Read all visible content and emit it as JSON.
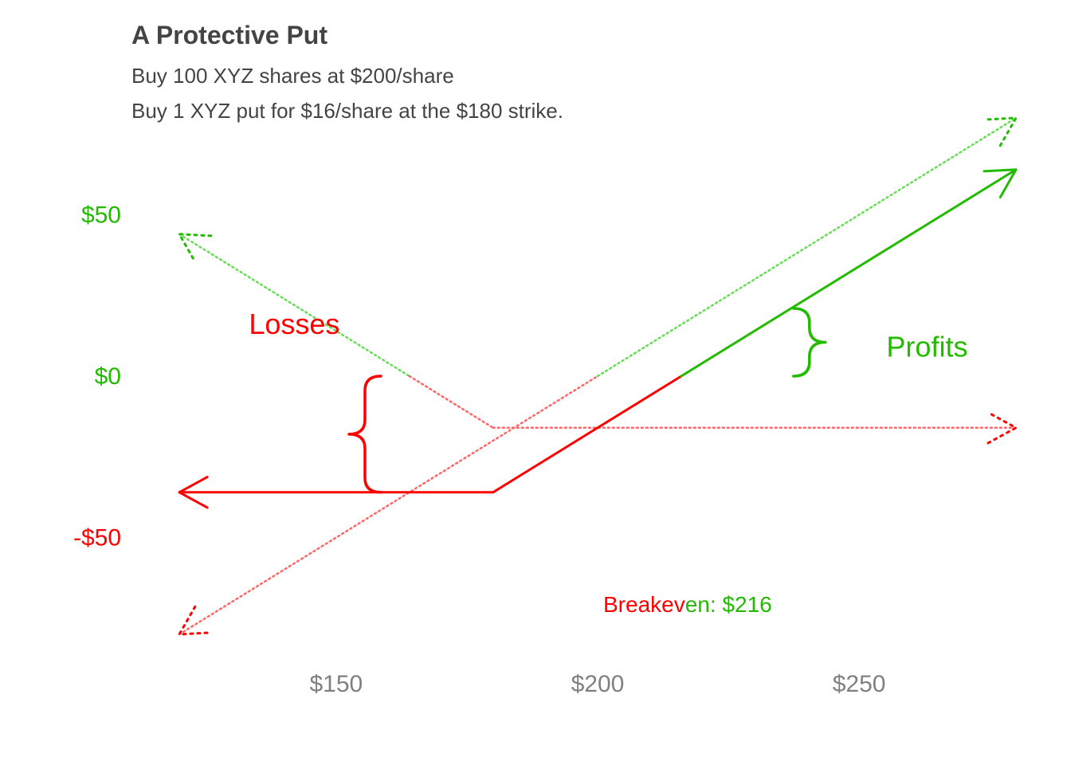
{
  "chart_data": {
    "type": "line",
    "title": "A Protective Put",
    "subtitle_lines": [
      "Buy 100 XYZ shares at $200/share",
      "Buy 1 XYZ put for $16/share at the $180 strike."
    ],
    "xlabel": "",
    "ylabel": "",
    "xlim": [
      110,
      283
    ],
    "ylim": [
      -90,
      100
    ],
    "x_ticks": [
      {
        "value": 150,
        "label": "$150"
      },
      {
        "value": 200,
        "label": "$200"
      },
      {
        "value": 250,
        "label": "$250"
      }
    ],
    "y_ticks": [
      {
        "value": 50,
        "label": "$50",
        "color": "#22bb00"
      },
      {
        "value": 0,
        "label": "$0",
        "color": "#22bb00"
      },
      {
        "value": -50,
        "label": "-$50",
        "color": "#ff0000"
      }
    ],
    "grid": false,
    "colors": {
      "profit": "#22bb00",
      "loss": "#ff0000",
      "profit_light": "#66dd55",
      "loss_light": "#ff6666"
    },
    "series": [
      {
        "role": "stock",
        "style": "dotted",
        "x": [
          120,
          280
        ],
        "y": [
          -80,
          80
        ]
      },
      {
        "role": "put",
        "style": "dotted",
        "x": [
          120,
          180,
          280
        ],
        "y": [
          44,
          -16,
          -16
        ]
      },
      {
        "role": "combined",
        "style": "solid",
        "x": [
          120,
          180,
          216,
          280
        ],
        "y": [
          -36,
          -36,
          0,
          64
        ]
      }
    ],
    "breakeven": {
      "x": 216,
      "label_red_part": "Breakev",
      "label_green_part": "en: $216"
    },
    "annotations": [
      {
        "id": "losses",
        "text": "Losses",
        "color": "#ff0000",
        "x": 142,
        "y": 16
      },
      {
        "id": "profits",
        "text": "Profits",
        "color": "#22bb00",
        "x": 263,
        "y": 9
      }
    ],
    "braces": [
      {
        "id": "losses-brace",
        "x": 155.5,
        "y_top": 0,
        "y_bottom": -36,
        "color": "#ff0000",
        "opens": "right"
      },
      {
        "id": "profits-brace",
        "x": 240.5,
        "y_top": 21,
        "y_bottom": 0,
        "color": "#22bb00",
        "opens": "left"
      }
    ]
  }
}
